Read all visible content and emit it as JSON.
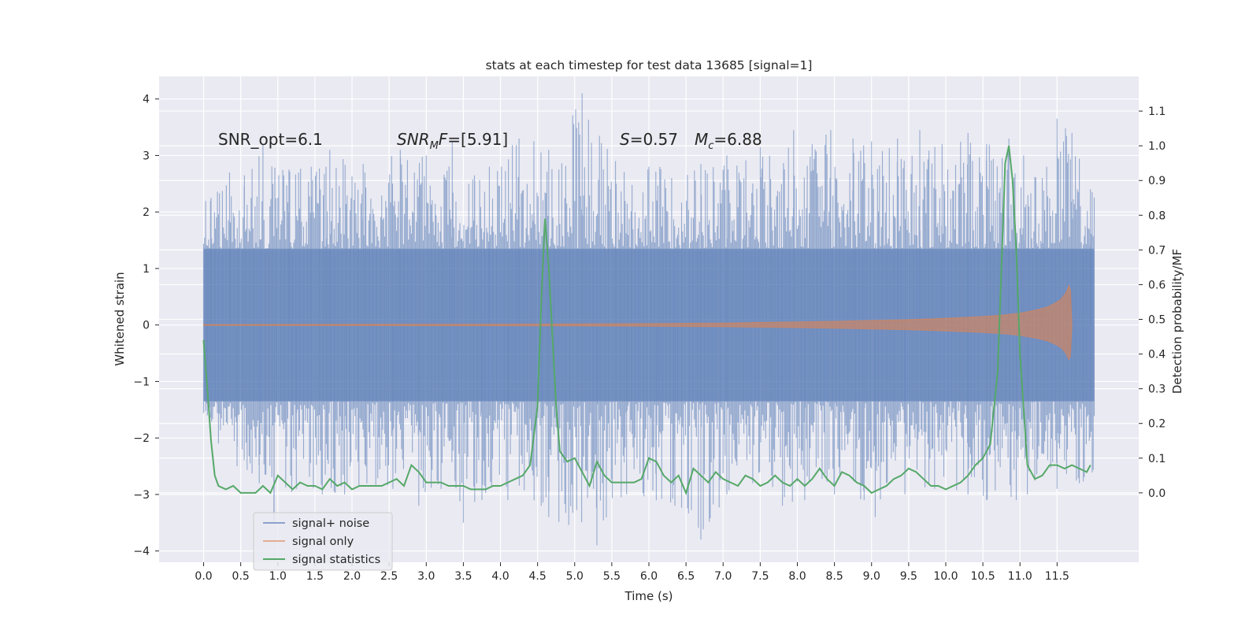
{
  "chart_data": {
    "type": "line",
    "title": "stats at each timestep for test data 13685 [signal=1]",
    "xlabel": "Time (s)",
    "ylabel": "Whitened strain",
    "ylabel_right": "Detection probability/MF",
    "xlim": [
      -0.6,
      12.6
    ],
    "ylim": [
      -4.2,
      4.4
    ],
    "ylim_right": [
      -0.2,
      1.2
    ],
    "x_ticks": [
      "0.0",
      "0.5",
      "1.0",
      "1.5",
      "2.0",
      "2.5",
      "3.0",
      "3.5",
      "4.0",
      "4.5",
      "5.0",
      "5.5",
      "6.0",
      "6.5",
      "7.0",
      "7.5",
      "8.0",
      "8.5",
      "9.0",
      "9.5",
      "10.0",
      "10.5",
      "11.0",
      "11.5"
    ],
    "y_ticks": [
      "4",
      "3",
      "2",
      "1",
      "0",
      "−1",
      "−2",
      "−3",
      "−4"
    ],
    "y_ticks_right": [
      "1.1",
      "1.0",
      "0.9",
      "0.8",
      "0.7",
      "0.6",
      "0.5",
      "0.4",
      "0.3",
      "0.2",
      "0.1",
      "0.0"
    ],
    "grid": true,
    "background": "#eaeaf2",
    "annotations": {
      "snr_opt": "SNR_opt=6.1",
      "snr_mf_name": "SNR",
      "snr_mf_sub": "M",
      "snr_mf_suffix": "F",
      "snr_mf_value": "=[5.91]",
      "s_name": "S",
      "s_value": "=0.57",
      "mc_name": "M",
      "mc_sub": "c",
      "mc_value": "=6.88"
    },
    "legend": {
      "placement": "lower-left",
      "entries": [
        "signal+ noise",
        "signal only",
        "signal statistics"
      ]
    },
    "series": [
      {
        "name": "signal+ noise",
        "axis": "left",
        "color": "#4c72b0",
        "x_range": [
          0.0,
          12.0
        ],
        "typical_amplitude": 1.35,
        "peaks_upper": [
          [
            0.1,
            2.25
          ],
          [
            0.35,
            2.7
          ],
          [
            0.55,
            2.65
          ],
          [
            0.8,
            3.2
          ],
          [
            1.15,
            2.75
          ],
          [
            1.45,
            2.8
          ],
          [
            1.65,
            2.8
          ],
          [
            1.7,
            3.1
          ],
          [
            2.15,
            2.85
          ],
          [
            2.65,
            3.1
          ],
          [
            3.0,
            3.0
          ],
          [
            3.35,
            3.25
          ],
          [
            3.65,
            2.65
          ],
          [
            3.85,
            2.8
          ],
          [
            4.25,
            3.3
          ],
          [
            4.45,
            3.25
          ],
          [
            4.65,
            3.1
          ],
          [
            5.1,
            4.1
          ],
          [
            5.55,
            2.9
          ],
          [
            6.0,
            2.8
          ],
          [
            6.7,
            2.85
          ],
          [
            7.05,
            3.0
          ],
          [
            7.5,
            3.15
          ],
          [
            7.95,
            3.45
          ],
          [
            8.2,
            3.2
          ],
          [
            8.45,
            3.45
          ],
          [
            8.75,
            3.3
          ],
          [
            9.0,
            3.25
          ],
          [
            9.35,
            3.3
          ],
          [
            9.65,
            3.45
          ],
          [
            9.95,
            3.2
          ],
          [
            10.3,
            3.4
          ],
          [
            10.55,
            3.2
          ],
          [
            10.85,
            3.3
          ],
          [
            11.05,
            3.0
          ],
          [
            11.3,
            2.6
          ],
          [
            11.5,
            3.65
          ],
          [
            11.7,
            3.4
          ],
          [
            11.95,
            2.4
          ]
        ],
        "peaks_lower": [
          [
            0.05,
            -1.6
          ],
          [
            0.2,
            -2.1
          ],
          [
            0.45,
            -2.5
          ],
          [
            0.75,
            -2.8
          ],
          [
            0.95,
            -3.5
          ],
          [
            1.25,
            -2.9
          ],
          [
            1.6,
            -3.0
          ],
          [
            1.9,
            -3.0
          ],
          [
            2.2,
            -2.8
          ],
          [
            2.55,
            -2.9
          ],
          [
            2.9,
            -3.2
          ],
          [
            3.2,
            -2.9
          ],
          [
            3.5,
            -3.5
          ],
          [
            3.75,
            -3.1
          ],
          [
            4.1,
            -3.1
          ],
          [
            4.55,
            -3.2
          ],
          [
            4.65,
            -3.4
          ],
          [
            5.3,
            -3.9
          ],
          [
            5.7,
            -3.0
          ],
          [
            6.1,
            -3.1
          ],
          [
            6.35,
            -3.2
          ],
          [
            6.7,
            -3.8
          ],
          [
            7.05,
            -3.0
          ],
          [
            7.4,
            -2.8
          ],
          [
            7.8,
            -3.2
          ],
          [
            8.1,
            -3.1
          ],
          [
            8.5,
            -3.0
          ],
          [
            8.9,
            -3.1
          ],
          [
            9.05,
            -3.4
          ],
          [
            9.45,
            -3.0
          ],
          [
            9.85,
            -2.9
          ],
          [
            10.3,
            -3.0
          ],
          [
            10.55,
            -3.1
          ],
          [
            10.95,
            -3.1
          ],
          [
            11.1,
            -3.0
          ],
          [
            11.5,
            -2.9
          ],
          [
            11.8,
            -2.8
          ]
        ]
      },
      {
        "name": "signal only",
        "axis": "left",
        "color": "#dd8452",
        "envelope": [
          [
            0.0,
            0.01
          ],
          [
            2.0,
            0.012
          ],
          [
            4.0,
            0.015
          ],
          [
            5.0,
            0.02
          ],
          [
            6.0,
            0.025
          ],
          [
            7.0,
            0.035
          ],
          [
            7.5,
            0.045
          ],
          [
            8.0,
            0.055
          ],
          [
            8.5,
            0.065
          ],
          [
            9.0,
            0.08
          ],
          [
            9.5,
            0.095
          ],
          [
            10.0,
            0.12
          ],
          [
            10.5,
            0.15
          ],
          [
            10.8,
            0.18
          ],
          [
            11.0,
            0.21
          ],
          [
            11.2,
            0.26
          ],
          [
            11.35,
            0.31
          ],
          [
            11.45,
            0.37
          ],
          [
            11.55,
            0.45
          ],
          [
            11.62,
            0.57
          ],
          [
            11.66,
            0.7
          ],
          [
            11.68,
            0.62
          ],
          [
            11.7,
            0.0
          ]
        ]
      },
      {
        "name": "signal statistics",
        "axis": "right",
        "color": "#55a868",
        "x": [
          0.0,
          0.05,
          0.1,
          0.15,
          0.2,
          0.3,
          0.4,
          0.5,
          0.6,
          0.7,
          0.8,
          0.9,
          1.0,
          1.1,
          1.2,
          1.3,
          1.4,
          1.5,
          1.6,
          1.7,
          1.8,
          1.9,
          2.0,
          2.1,
          2.2,
          2.3,
          2.4,
          2.5,
          2.6,
          2.7,
          2.8,
          2.9,
          3.0,
          3.1,
          3.2,
          3.3,
          3.4,
          3.5,
          3.6,
          3.7,
          3.8,
          3.9,
          4.0,
          4.1,
          4.2,
          4.3,
          4.4,
          4.5,
          4.55,
          4.6,
          4.65,
          4.7,
          4.75,
          4.8,
          4.9,
          5.0,
          5.1,
          5.2,
          5.3,
          5.4,
          5.5,
          5.6,
          5.7,
          5.8,
          5.9,
          6.0,
          6.1,
          6.2,
          6.3,
          6.4,
          6.5,
          6.6,
          6.7,
          6.8,
          6.9,
          7.0,
          7.1,
          7.2,
          7.3,
          7.4,
          7.5,
          7.6,
          7.7,
          7.8,
          7.9,
          8.0,
          8.1,
          8.2,
          8.3,
          8.4,
          8.5,
          8.6,
          8.7,
          8.8,
          8.9,
          9.0,
          9.1,
          9.2,
          9.3,
          9.4,
          9.5,
          9.6,
          9.7,
          9.8,
          9.9,
          10.0,
          10.1,
          10.2,
          10.3,
          10.4,
          10.5,
          10.6,
          10.7,
          10.75,
          10.8,
          10.85,
          10.9,
          10.95,
          11.0,
          11.1,
          11.2,
          11.3,
          11.4,
          11.5,
          11.6,
          11.7,
          11.8,
          11.9,
          11.95
        ],
        "values": [
          0.44,
          0.3,
          0.15,
          0.05,
          0.02,
          0.01,
          0.02,
          0.0,
          0.0,
          0.0,
          0.02,
          0.0,
          0.05,
          0.03,
          0.01,
          0.03,
          0.02,
          0.02,
          0.01,
          0.04,
          0.02,
          0.03,
          0.01,
          0.02,
          0.02,
          0.02,
          0.02,
          0.03,
          0.04,
          0.02,
          0.08,
          0.06,
          0.03,
          0.03,
          0.03,
          0.02,
          0.02,
          0.02,
          0.01,
          0.01,
          0.01,
          0.02,
          0.02,
          0.03,
          0.04,
          0.05,
          0.08,
          0.25,
          0.55,
          0.79,
          0.65,
          0.45,
          0.25,
          0.12,
          0.09,
          0.1,
          0.06,
          0.02,
          0.09,
          0.05,
          0.03,
          0.03,
          0.03,
          0.03,
          0.04,
          0.1,
          0.09,
          0.05,
          0.03,
          0.05,
          0.0,
          0.07,
          0.05,
          0.03,
          0.06,
          0.04,
          0.03,
          0.02,
          0.05,
          0.04,
          0.02,
          0.03,
          0.05,
          0.03,
          0.02,
          0.04,
          0.02,
          0.04,
          0.07,
          0.04,
          0.02,
          0.06,
          0.05,
          0.03,
          0.02,
          0.0,
          0.01,
          0.02,
          0.04,
          0.05,
          0.07,
          0.06,
          0.04,
          0.02,
          0.02,
          0.01,
          0.02,
          0.03,
          0.05,
          0.08,
          0.1,
          0.14,
          0.35,
          0.65,
          0.95,
          1.0,
          0.9,
          0.7,
          0.4,
          0.08,
          0.04,
          0.05,
          0.08,
          0.08,
          0.07,
          0.08,
          0.07,
          0.06,
          0.08
        ]
      }
    ]
  }
}
